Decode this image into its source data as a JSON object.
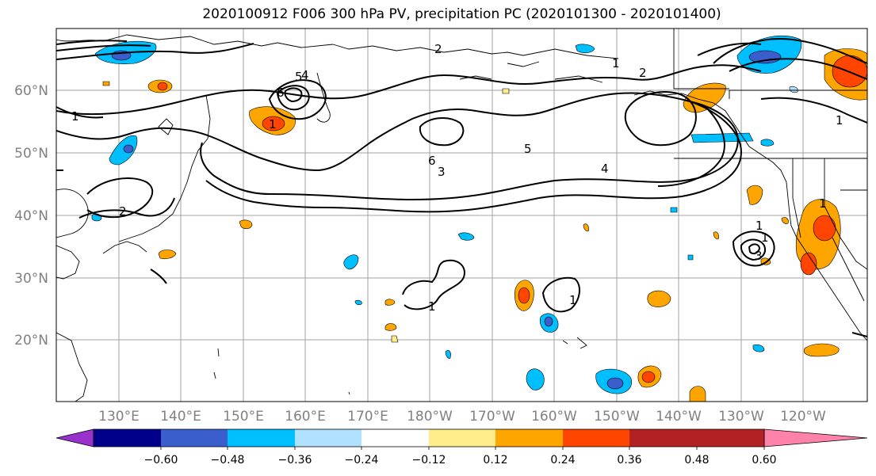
{
  "title": "2020100912 F006 300 hPa PV, precipitation PC (2020101300 - 2020101400)",
  "map": {
    "lat_labels": [
      "60°N",
      "50°N",
      "40°N",
      "30°N",
      "20°N"
    ],
    "lon_labels": [
      "130°E",
      "140°E",
      "150°E",
      "160°E",
      "170°E",
      "180°W",
      "170°W",
      "160°W",
      "150°W",
      "140°W",
      "130°W",
      "120°W"
    ],
    "contour_labels": [
      "1",
      "2",
      "5",
      "4",
      "6",
      "1",
      "5",
      "6",
      "3",
      "4",
      "1",
      "2",
      "1",
      "2",
      "1",
      "1",
      "3",
      "1",
      "1",
      "1"
    ]
  },
  "colorbar": {
    "ticks": [
      "−0.60",
      "−0.48",
      "−0.36",
      "−0.24",
      "−0.12",
      "0.12",
      "0.24",
      "0.36",
      "0.48",
      "0.60"
    ],
    "colors": [
      "#9932cc",
      "#00008b",
      "#3a5fcd",
      "#00bfff",
      "#b0e2ff",
      "#ffffff",
      "#ffec8b",
      "#ffa500",
      "#ff4500",
      "#b22222",
      "#ff82ab"
    ]
  }
}
